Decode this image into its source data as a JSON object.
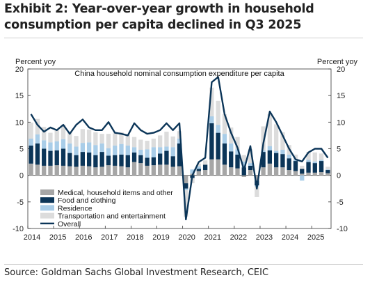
{
  "header": {
    "title_line1": "Exhibit 2: Year-over-year growth in household",
    "title_line2": "consumption per capita declined in Q3 2025"
  },
  "footer": {
    "source": "Source: Goldman Sachs Global Investment Research, CEIC"
  },
  "colors": {
    "medical": "#a6a6a6",
    "food": "#0b3558",
    "residence": "#a9cde8",
    "transport": "#dcdcdc",
    "overall": "#0b3558"
  },
  "chart_data": {
    "type": "bar",
    "stacked": true,
    "title": "China household nominal consumption expenditure per capita",
    "ylabel_left": "Percent yoy",
    "ylabel_right": "Percent yoy",
    "ylim": [
      -10,
      20
    ],
    "yticks": [
      -10,
      -5,
      0,
      5,
      10,
      15,
      20
    ],
    "xtick_labels": [
      "2014",
      "2015",
      "2016",
      "2017",
      "2018",
      "2019",
      "2020",
      "2021",
      "2022",
      "2023",
      "2024",
      "2025"
    ],
    "legend_position": "bottom-left",
    "grid": false,
    "categories": [
      "2014Q1",
      "2014Q2",
      "2014Q3",
      "2014Q4",
      "2015Q1",
      "2015Q2",
      "2015Q3",
      "2015Q4",
      "2016Q1",
      "2016Q2",
      "2016Q3",
      "2016Q4",
      "2017Q1",
      "2017Q2",
      "2017Q3",
      "2017Q4",
      "2018Q1",
      "2018Q2",
      "2018Q3",
      "2018Q4",
      "2019Q1",
      "2019Q2",
      "2019Q3",
      "2019Q4",
      "2020Q1",
      "2020Q2",
      "2020Q3",
      "2020Q4",
      "2021Q1",
      "2021Q2",
      "2021Q3",
      "2021Q4",
      "2022Q1",
      "2022Q2",
      "2022Q3",
      "2022Q4",
      "2023Q1",
      "2023Q2",
      "2023Q3",
      "2023Q4",
      "2024Q1",
      "2024Q2",
      "2024Q3",
      "2024Q4",
      "2025Q1",
      "2025Q2",
      "2025Q3"
    ],
    "series": [
      {
        "name": "Medical, household items and other",
        "key": "medical",
        "values": [
          2.2,
          2.0,
          1.8,
          1.8,
          1.9,
          1.8,
          1.7,
          1.6,
          1.8,
          1.7,
          1.5,
          1.6,
          1.9,
          1.8,
          1.7,
          1.5,
          2.5,
          2.3,
          1.8,
          1.9,
          2.0,
          2.0,
          1.6,
          1.7,
          -1.5,
          0.3,
          0.8,
          1.0,
          3.0,
          3.0,
          2.0,
          1.5,
          1.3,
          -0.3,
          1.0,
          -1.0,
          1.5,
          2.2,
          1.5,
          1.5,
          1.0,
          0.8,
          0.3,
          0.5,
          0.5,
          0.6,
          0.4
        ]
      },
      {
        "name": "Food and clothing",
        "key": "food",
        "values": [
          3.4,
          4.0,
          3.2,
          2.8,
          2.8,
          3.2,
          2.5,
          2.2,
          2.6,
          2.6,
          2.3,
          2.8,
          1.8,
          2.0,
          2.2,
          2.3,
          1.8,
          1.5,
          1.5,
          1.5,
          2.1,
          2.6,
          2.0,
          4.3,
          -1.0,
          -0.5,
          0.4,
          1.0,
          6.8,
          5.0,
          4.0,
          3.0,
          2.6,
          1.5,
          0.8,
          -0.9,
          2.9,
          2.5,
          2.7,
          2.5,
          2.2,
          1.9,
          0.9,
          2.0,
          1.8,
          2.1,
          0.6
        ]
      },
      {
        "name": "Residence",
        "key": "residence",
        "values": [
          1.3,
          1.7,
          1.6,
          1.6,
          1.7,
          1.8,
          1.8,
          1.6,
          1.7,
          1.9,
          1.9,
          1.6,
          1.4,
          1.8,
          2.0,
          1.8,
          1.0,
          1.0,
          1.6,
          1.9,
          1.2,
          0.8,
          1.7,
          0.9,
          -0.3,
          0.8,
          0.5,
          0.0,
          1.3,
          1.5,
          1.8,
          1.5,
          1.0,
          1.1,
          0.5,
          -0.2,
          0.3,
          0.8,
          0.4,
          0.8,
          0.7,
          0.3,
          -1.0,
          0.4,
          0.3,
          0.2,
          0.1
        ]
      },
      {
        "name": "Transportation and entertainment",
        "key": "transport",
        "values": [
          3.0,
          2.9,
          2.5,
          1.8,
          2.2,
          2.7,
          2.0,
          2.0,
          2.6,
          2.4,
          2.4,
          1.8,
          2.7,
          2.3,
          2.2,
          2.1,
          1.9,
          1.9,
          1.6,
          1.6,
          2.2,
          2.8,
          2.0,
          1.4,
          -5.0,
          -1.0,
          0.5,
          0.8,
          5.4,
          4.5,
          3.7,
          3.0,
          2.3,
          1.2,
          2.6,
          -2.0,
          4.5,
          6.0,
          5.0,
          3.3,
          1.8,
          0.9,
          0.6,
          1.5,
          1.7,
          1.2,
          0.5
        ]
      },
      {
        "name": "Overall",
        "key": "overall",
        "type": "line",
        "values": [
          11.5,
          9.5,
          8.2,
          9.0,
          8.5,
          9.5,
          7.8,
          9.5,
          10.5,
          9.0,
          8.5,
          8.5,
          10.0,
          8.0,
          7.8,
          7.5,
          9.8,
          8.5,
          7.8,
          8.0,
          8.5,
          9.8,
          8.5,
          9.8,
          -8.3,
          0.0,
          2.5,
          3.3,
          17.5,
          18.5,
          11.5,
          8.0,
          5.2,
          1.0,
          5.5,
          -2.5,
          6.0,
          12.0,
          10.0,
          7.5,
          5.0,
          3.0,
          2.6,
          4.3,
          5.0,
          5.0,
          3.3
        ]
      }
    ]
  }
}
